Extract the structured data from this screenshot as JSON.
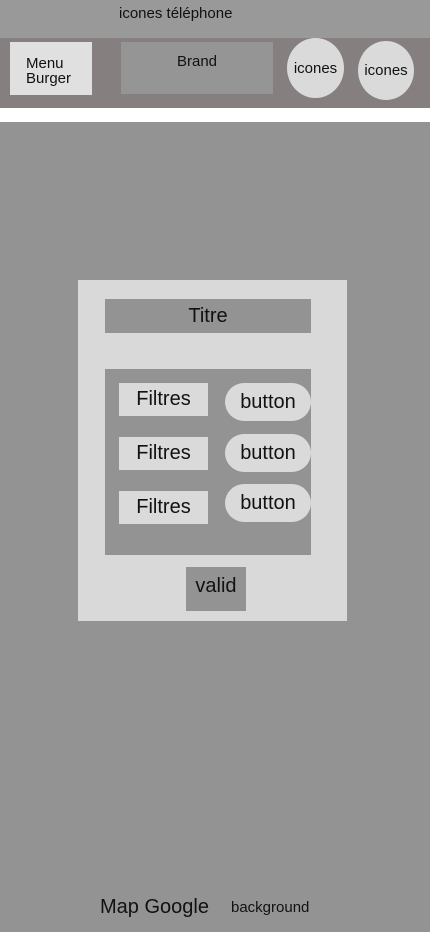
{
  "status_bar": {
    "text": "icones téléphone"
  },
  "nav": {
    "menu_line1": "Menu",
    "menu_line2": "Burger",
    "brand": "Brand",
    "icon1": "icones",
    "icon2": "icones"
  },
  "card": {
    "title": "Titre",
    "filters": [
      {
        "label": "Filtres",
        "button": "button"
      },
      {
        "label": "Filtres",
        "button": "button"
      },
      {
        "label": "Filtres",
        "button": "button"
      }
    ],
    "valid": "valid"
  },
  "footer": {
    "map": "Map Google",
    "background": "background"
  }
}
